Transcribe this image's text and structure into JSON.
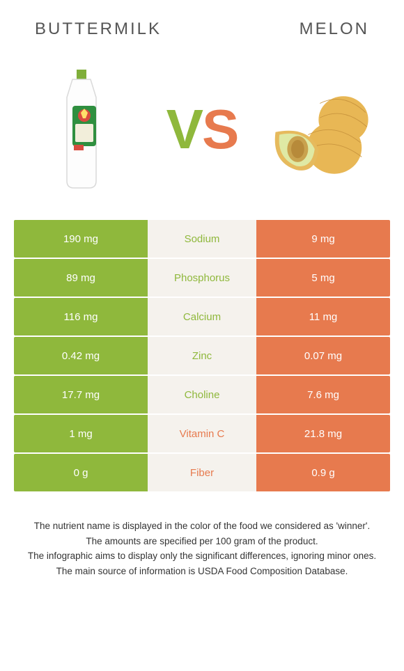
{
  "colors": {
    "green": "#8fb83c",
    "orange": "#e77a4e",
    "mid_bg": "#f5f2ed"
  },
  "header": {
    "left_title": "Buttermilk",
    "right_title": "Melon"
  },
  "vs": {
    "v": "V",
    "s": "S"
  },
  "rows": [
    {
      "label": "Sodium",
      "winner": "green",
      "left": "190 mg",
      "right": "9 mg"
    },
    {
      "label": "Phosphorus",
      "winner": "green",
      "left": "89 mg",
      "right": "5 mg"
    },
    {
      "label": "Calcium",
      "winner": "green",
      "left": "116 mg",
      "right": "11 mg"
    },
    {
      "label": "Zinc",
      "winner": "green",
      "left": "0.42 mg",
      "right": "0.07 mg"
    },
    {
      "label": "Choline",
      "winner": "green",
      "left": "17.7 mg",
      "right": "7.6 mg"
    },
    {
      "label": "Vitamin C",
      "winner": "orange",
      "left": "1 mg",
      "right": "21.8 mg"
    },
    {
      "label": "Fiber",
      "winner": "orange",
      "left": "0 g",
      "right": "0.9 g"
    }
  ],
  "footer": [
    "The nutrient name is displayed in the color of the food we considered as 'winner'.",
    "The amounts are specified per 100 gram of the product.",
    "The infographic aims to display only the significant differences, ignoring minor ones.",
    "The main source of information is USDA Food Composition Database."
  ]
}
